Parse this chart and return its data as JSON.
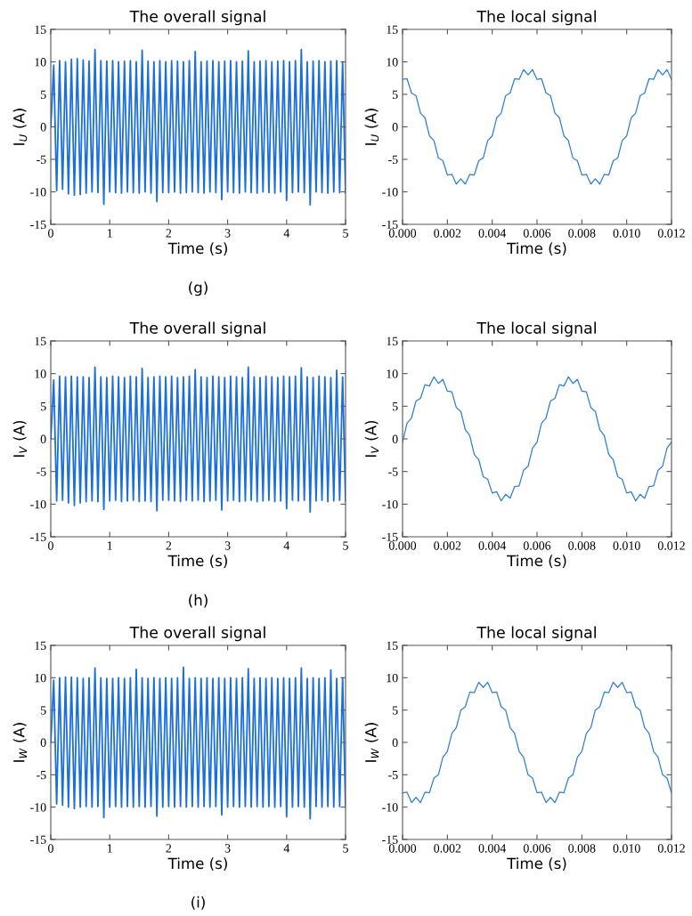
{
  "chart_data": [
    {
      "type": "line",
      "title": "The overall signal",
      "xlabel": "Time (s)",
      "ylabel": "I$_{U}$ (A)",
      "annotations": [
        "(g)"
      ],
      "x": [
        0,
        0.05,
        0.1,
        0.15,
        0.2,
        0.25,
        0.3,
        0.35,
        0.4,
        0.45,
        0.5,
        0.55,
        0.6,
        0.65,
        0.7,
        0.75,
        0.8,
        0.85,
        0.9,
        0.95,
        1,
        1.05,
        1.1,
        1.15,
        1.2,
        1.25,
        1.3,
        1.35,
        1.4,
        1.45,
        1.5,
        1.55,
        1.6,
        1.65,
        1.7,
        1.75,
        1.8,
        1.85,
        1.9,
        1.95,
        2,
        2.05,
        2.1,
        2.15,
        2.2,
        2.25,
        2.3,
        2.35,
        2.4,
        2.45,
        2.5,
        2.55,
        2.6,
        2.65,
        2.7,
        2.75,
        2.8,
        2.85,
        2.9,
        2.95,
        3,
        3.05,
        3.1,
        3.15,
        3.2,
        3.25,
        3.3,
        3.35,
        3.4,
        3.45,
        3.5,
        3.55,
        3.6,
        3.65,
        3.7,
        3.75,
        3.8,
        3.85,
        3.9,
        3.95,
        4,
        4.05,
        4.1,
        4.15,
        4.2,
        4.25,
        4.3,
        4.35,
        4.4,
        4.45,
        4.5,
        4.55,
        4.6,
        4.65,
        4.7,
        4.75,
        4.8,
        4.85,
        4.9,
        4.95,
        5
      ],
      "series": [
        {
          "color": "#1a6fdc",
          "values": [
            0,
            9.5,
            -9.8,
            10.2,
            -9.6,
            10.0,
            -10.3,
            10.4,
            -10.5,
            10.5,
            -10.4,
            10.3,
            -10.2,
            10.1,
            -10.0,
            11.9,
            -10.1,
            10.2,
            -11.9,
            10.1,
            -10.0,
            10.2,
            -10.1,
            10.0,
            -10.2,
            10.1,
            -10.0,
            10.2,
            -10.1,
            10.0,
            -10.2,
            11.8,
            -10.0,
            10.1,
            -10.2,
            10.0,
            -11.5,
            10.2,
            -10.1,
            10.0,
            -10.1,
            10.2,
            -10.0,
            10.1,
            -10.2,
            10.0,
            -10.1,
            10.2,
            -10.0,
            11.6,
            -10.1,
            10.0,
            -10.2,
            10.1,
            -10.0,
            10.2,
            -10.1,
            10.0,
            -11.2,
            10.1,
            -10.0,
            10.2,
            -10.1,
            10.0,
            -10.2,
            10.1,
            -10.0,
            11.7,
            -10.1,
            10.0,
            -10.2,
            10.1,
            -10.0,
            10.2,
            -10.1,
            10.0,
            -10.2,
            10.1,
            -10.0,
            10.2,
            -11.3,
            10.0,
            -10.1,
            10.2,
            -10.0,
            11.9,
            -10.1,
            10.0,
            -12.0,
            10.1,
            -10.0,
            10.2,
            -10.1,
            10.0,
            -10.2,
            10.1,
            -10.0,
            10.2,
            -10.1,
            10.0,
            -10.2
          ]
        }
      ],
      "xlim": [
        0,
        5
      ],
      "ylim": [
        -15,
        15
      ],
      "xticks": [
        0,
        1,
        2,
        3,
        4,
        5
      ],
      "yticks": [
        -15,
        -10,
        -5,
        0,
        5,
        10,
        15
      ]
    },
    {
      "type": "line",
      "title": "The local signal",
      "xlabel": "Time (s)",
      "ylabel": "I$_{U}$ (A)",
      "x": [
        0,
        0.0002,
        0.0004,
        0.0006,
        0.0008,
        0.001,
        0.0012,
        0.0014,
        0.0016,
        0.0018,
        0.002,
        0.0022,
        0.0024,
        0.0026,
        0.0028,
        0.003,
        0.0032,
        0.0034,
        0.0036,
        0.0038,
        0.004,
        0.0042,
        0.0044,
        0.0046,
        0.0048,
        0.005,
        0.0052,
        0.0054,
        0.0056,
        0.0058,
        0.006,
        0.0062,
        0.0064,
        0.0066,
        0.0068,
        0.007,
        0.0072,
        0.0074,
        0.0076,
        0.0078,
        0.008,
        0.0082,
        0.0084,
        0.0086,
        0.0088,
        0.009,
        0.0092,
        0.0094,
        0.0096,
        0.0098,
        0.01,
        0.0102,
        0.0104,
        0.0106,
        0.0108,
        0.011,
        0.0112,
        0.0114,
        0.0116,
        0.0118,
        0.012
      ],
      "series": [
        {
          "color": "#2f7fd0",
          "values": [
            7.3,
            7.4,
            5.2,
            4.8,
            2.1,
            1.4,
            -1.4,
            -2.1,
            -4.8,
            -5.2,
            -7.4,
            -7.3,
            -8.8,
            -8.0,
            -8.8,
            -7.3,
            -7.4,
            -5.2,
            -4.8,
            -2.1,
            -1.4,
            1.4,
            2.1,
            4.8,
            5.2,
            7.4,
            7.3,
            8.8,
            8.0,
            8.8,
            7.3,
            7.4,
            5.2,
            4.8,
            2.1,
            1.4,
            -1.4,
            -2.1,
            -4.8,
            -5.2,
            -7.4,
            -7.3,
            -8.8,
            -8.0,
            -8.8,
            -7.3,
            -7.4,
            -5.2,
            -4.8,
            -2.1,
            -1.4,
            1.4,
            2.1,
            4.8,
            5.2,
            7.4,
            7.3,
            8.8,
            8.0,
            8.8,
            7.3
          ]
        }
      ],
      "xlim": [
        0,
        0.012
      ],
      "ylim": [
        -15,
        15
      ],
      "xticks": [
        {
          "value": 0,
          "label": "0.000"
        },
        {
          "value": 0.002,
          "label": "0.002"
        },
        {
          "value": 0.004,
          "label": "0.004"
        },
        {
          "value": 0.006,
          "label": "0.006"
        },
        {
          "value": 0.008,
          "label": "0.008"
        },
        {
          "value": 0.01,
          "label": "0.010"
        },
        {
          "value": 0.012,
          "label": "0.012"
        }
      ],
      "yticks": [
        -15,
        -10,
        -5,
        0,
        5,
        10,
        15
      ]
    },
    {
      "type": "line",
      "title": "The overall signal",
      "xlabel": "Time (s)",
      "ylabel": "I$_{V}$ (A)",
      "annotations": [
        "(h)"
      ],
      "x": [
        0,
        0.05,
        0.1,
        0.15,
        0.2,
        0.25,
        0.3,
        0.35,
        0.4,
        0.45,
        0.5,
        0.55,
        0.6,
        0.65,
        0.7,
        0.75,
        0.8,
        0.85,
        0.9,
        0.95,
        1,
        1.05,
        1.1,
        1.15,
        1.2,
        1.25,
        1.3,
        1.35,
        1.4,
        1.45,
        1.5,
        1.55,
        1.6,
        1.65,
        1.7,
        1.75,
        1.8,
        1.85,
        1.9,
        1.95,
        2,
        2.05,
        2.1,
        2.15,
        2.2,
        2.25,
        2.3,
        2.35,
        2.4,
        2.45,
        2.5,
        2.55,
        2.6,
        2.65,
        2.7,
        2.75,
        2.8,
        2.85,
        2.9,
        2.95,
        3,
        3.05,
        3.1,
        3.15,
        3.2,
        3.25,
        3.3,
        3.35,
        3.4,
        3.45,
        3.5,
        3.55,
        3.6,
        3.65,
        3.7,
        3.75,
        3.8,
        3.85,
        3.9,
        3.95,
        4,
        4.05,
        4.1,
        4.15,
        4.2,
        4.25,
        4.3,
        4.35,
        4.4,
        4.45,
        4.5,
        4.55,
        4.6,
        4.65,
        4.7,
        4.75,
        4.8,
        4.85,
        4.9,
        4.95,
        5
      ],
      "series": [
        {
          "color": "#1a6fdc",
          "values": [
            0,
            9.0,
            -9.5,
            9.6,
            -9.4,
            9.5,
            -9.8,
            9.6,
            -10.2,
            9.5,
            -9.8,
            9.5,
            -9.6,
            9.4,
            -9.5,
            11.0,
            -9.6,
            9.5,
            -10.8,
            9.4,
            -9.5,
            9.6,
            -9.4,
            9.5,
            -9.6,
            9.4,
            -9.5,
            9.6,
            -9.4,
            9.5,
            -9.6,
            10.8,
            -9.5,
            9.4,
            -9.6,
            9.5,
            -11.0,
            9.6,
            -9.4,
            9.5,
            -9.4,
            9.6,
            -9.5,
            9.4,
            -9.6,
            9.5,
            -9.4,
            9.6,
            -9.5,
            10.6,
            -9.4,
            9.5,
            -9.6,
            9.4,
            -9.5,
            9.6,
            -9.4,
            9.5,
            -10.9,
            9.4,
            -9.5,
            9.6,
            -9.4,
            9.5,
            -9.6,
            9.4,
            -9.5,
            11.0,
            -9.4,
            9.5,
            -9.6,
            9.4,
            -9.5,
            9.6,
            -9.4,
            9.5,
            -9.6,
            9.4,
            -9.5,
            9.6,
            -10.7,
            9.5,
            -9.4,
            9.6,
            -9.5,
            10.9,
            -9.4,
            9.5,
            -11.2,
            9.4,
            -9.5,
            9.6,
            -9.4,
            9.5,
            -9.6,
            9.4,
            -9.5,
            10.5,
            -9.4,
            9.5,
            -9.6
          ]
        }
      ],
      "xlim": [
        0,
        5
      ],
      "ylim": [
        -15,
        15
      ],
      "xticks": [
        0,
        1,
        2,
        3,
        4,
        5
      ],
      "yticks": [
        -15,
        -10,
        -5,
        0,
        5,
        10,
        15
      ]
    },
    {
      "type": "line",
      "title": "The local signal",
      "xlabel": "Time (s)",
      "ylabel": "I$_{V}$ (A)",
      "x": [
        0,
        0.0002,
        0.0004,
        0.0006,
        0.0008,
        0.001,
        0.0012,
        0.0014,
        0.0016,
        0.0018,
        0.002,
        0.0022,
        0.0024,
        0.0026,
        0.0028,
        0.003,
        0.0032,
        0.0034,
        0.0036,
        0.0038,
        0.004,
        0.0042,
        0.0044,
        0.0046,
        0.0048,
        0.005,
        0.0052,
        0.0054,
        0.0056,
        0.0058,
        0.006,
        0.0062,
        0.0064,
        0.0066,
        0.0068,
        0.007,
        0.0072,
        0.0074,
        0.0076,
        0.0078,
        0.008,
        0.0082,
        0.0084,
        0.0086,
        0.0088,
        0.009,
        0.0092,
        0.0094,
        0.0096,
        0.0098,
        0.01,
        0.0102,
        0.0104,
        0.0106,
        0.0108,
        0.011,
        0.0112,
        0.0114,
        0.0116,
        0.0118,
        0.012
      ],
      "series": [
        {
          "color": "#2f7fd0",
          "values": [
            -0.5,
            2.4,
            3.2,
            5.8,
            6.2,
            8.3,
            8.1,
            9.5,
            8.5,
            9.1,
            7.3,
            7.2,
            4.8,
            4.2,
            1.4,
            0.5,
            -2.4,
            -3.2,
            -5.8,
            -6.2,
            -8.3,
            -8.1,
            -9.5,
            -8.5,
            -9.1,
            -7.3,
            -7.2,
            -4.8,
            -4.2,
            -1.4,
            -0.5,
            2.4,
            3.2,
            5.8,
            6.2,
            8.3,
            8.1,
            9.5,
            8.5,
            9.1,
            7.3,
            7.2,
            4.8,
            4.2,
            1.4,
            0.5,
            -2.4,
            -3.2,
            -5.8,
            -6.2,
            -8.3,
            -8.1,
            -9.5,
            -8.5,
            -9.1,
            -7.3,
            -7.2,
            -4.8,
            -4.2,
            -1.4,
            -0.5
          ]
        }
      ],
      "xlim": [
        0,
        0.012
      ],
      "ylim": [
        -15,
        15
      ],
      "xticks": [
        {
          "value": 0,
          "label": "0.000"
        },
        {
          "value": 0.002,
          "label": "0.002"
        },
        {
          "value": 0.004,
          "label": "0.004"
        },
        {
          "value": 0.006,
          "label": "0.006"
        },
        {
          "value": 0.008,
          "label": "0.008"
        },
        {
          "value": 0.01,
          "label": "0.010"
        },
        {
          "value": 0.012,
          "label": "0.012"
        }
      ],
      "yticks": [
        -15,
        -10,
        -5,
        0,
        5,
        10,
        15
      ]
    },
    {
      "type": "line",
      "title": "The overall signal",
      "xlabel": "Time (s)",
      "ylabel": "I$_{W}$ (A)",
      "annotations": [
        "(i)"
      ],
      "x": [
        0,
        0.05,
        0.1,
        0.15,
        0.2,
        0.25,
        0.3,
        0.35,
        0.4,
        0.45,
        0.5,
        0.55,
        0.6,
        0.65,
        0.7,
        0.75,
        0.8,
        0.85,
        0.9,
        0.95,
        1,
        1.05,
        1.1,
        1.15,
        1.2,
        1.25,
        1.3,
        1.35,
        1.4,
        1.45,
        1.5,
        1.55,
        1.6,
        1.65,
        1.7,
        1.75,
        1.8,
        1.85,
        1.9,
        1.95,
        2,
        2.05,
        2.1,
        2.15,
        2.2,
        2.25,
        2.3,
        2.35,
        2.4,
        2.45,
        2.5,
        2.55,
        2.6,
        2.65,
        2.7,
        2.75,
        2.8,
        2.85,
        2.9,
        2.95,
        3,
        3.05,
        3.1,
        3.15,
        3.2,
        3.25,
        3.3,
        3.35,
        3.4,
        3.45,
        3.5,
        3.55,
        3.6,
        3.65,
        3.7,
        3.75,
        3.8,
        3.85,
        3.9,
        3.95,
        4,
        4.05,
        4.1,
        4.15,
        4.2,
        4.25,
        4.3,
        4.35,
        4.4,
        4.45,
        4.5,
        4.55,
        4.6,
        4.65,
        4.7,
        4.75,
        4.8,
        4.85,
        4.9,
        4.95,
        5
      ],
      "series": [
        {
          "color": "#1a6fdc",
          "values": [
            0,
            9.6,
            -9.5,
            10.0,
            -9.7,
            10.1,
            -10.0,
            10.1,
            -10.2,
            10.0,
            -10.0,
            9.9,
            -9.9,
            10.0,
            -10.0,
            11.5,
            -9.9,
            10.0,
            -11.6,
            9.9,
            -10.0,
            9.9,
            -9.9,
            10.0,
            -10.0,
            9.9,
            -9.9,
            10.0,
            -10.0,
            11.3,
            -9.9,
            10.0,
            -10.0,
            9.9,
            -9.9,
            10.0,
            -11.4,
            9.9,
            -10.0,
            10.0,
            -9.9,
            9.9,
            -10.0,
            10.0,
            -9.9,
            11.6,
            -10.0,
            9.9,
            -9.9,
            10.0,
            -10.0,
            9.9,
            -9.9,
            10.0,
            -10.0,
            9.9,
            -9.9,
            10.0,
            -11.2,
            9.9,
            -10.0,
            10.0,
            -9.9,
            9.9,
            -10.0,
            10.0,
            -9.9,
            11.4,
            -10.0,
            9.9,
            -9.9,
            10.0,
            -10.0,
            9.9,
            -9.9,
            10.0,
            -10.0,
            9.9,
            -9.9,
            10.0,
            -11.5,
            9.9,
            -10.0,
            10.0,
            -9.9,
            11.5,
            -10.0,
            9.9,
            -11.8,
            10.0,
            -9.9,
            9.9,
            -10.0,
            10.0,
            -9.9,
            11.2,
            -10.0,
            9.9,
            -9.9,
            10.0,
            -10.0
          ]
        }
      ],
      "xlim": [
        0,
        5
      ],
      "ylim": [
        -15,
        15
      ],
      "xticks": [
        0,
        1,
        2,
        3,
        4,
        5
      ],
      "yticks": [
        -15,
        -10,
        -5,
        0,
        5,
        10,
        15
      ]
    },
    {
      "type": "line",
      "title": "The local signal",
      "xlabel": "Time (s)",
      "ylabel": "I$_{W}$ (A)",
      "x": [
        0,
        0.0002,
        0.0004,
        0.0006,
        0.0008,
        0.001,
        0.0012,
        0.0014,
        0.0016,
        0.0018,
        0.002,
        0.0022,
        0.0024,
        0.0026,
        0.0028,
        0.003,
        0.0032,
        0.0034,
        0.0036,
        0.0038,
        0.004,
        0.0042,
        0.0044,
        0.0046,
        0.0048,
        0.005,
        0.0052,
        0.0054,
        0.0056,
        0.0058,
        0.006,
        0.0062,
        0.0064,
        0.0066,
        0.0068,
        0.007,
        0.0072,
        0.0074,
        0.0076,
        0.0078,
        0.008,
        0.0082,
        0.0084,
        0.0086,
        0.0088,
        0.009,
        0.0092,
        0.0094,
        0.0096,
        0.0098,
        0.01,
        0.0102,
        0.0104,
        0.0106,
        0.0108,
        0.011,
        0.0112,
        0.0114,
        0.0116,
        0.0118,
        0.012
      ],
      "series": [
        {
          "color": "#2f7fd0",
          "values": [
            -7.8,
            -7.7,
            -9.3,
            -8.5,
            -9.3,
            -7.7,
            -7.8,
            -5.5,
            -5.0,
            -2.3,
            -1.4,
            1.4,
            2.3,
            5.0,
            5.5,
            7.8,
            7.7,
            9.3,
            8.5,
            9.3,
            7.7,
            7.8,
            5.5,
            5.0,
            2.3,
            1.4,
            -1.4,
            -2.3,
            -5.0,
            -5.5,
            -7.8,
            -7.7,
            -9.3,
            -8.5,
            -9.3,
            -7.7,
            -7.8,
            -5.5,
            -5.0,
            -2.3,
            -1.4,
            1.4,
            2.3,
            5.0,
            5.5,
            7.8,
            7.7,
            9.3,
            8.5,
            9.3,
            7.7,
            7.8,
            5.5,
            5.0,
            2.3,
            1.4,
            -1.4,
            -2.3,
            -5.0,
            -5.5,
            -7.8
          ]
        }
      ],
      "xlim": [
        0,
        0.012
      ],
      "ylim": [
        -15,
        15
      ],
      "xticks": [
        {
          "value": 0,
          "label": "0.000"
        },
        {
          "value": 0.002,
          "label": "0.002"
        },
        {
          "value": 0.004,
          "label": "0.004"
        },
        {
          "value": 0.006,
          "label": "0.006"
        },
        {
          "value": 0.008,
          "label": "0.008"
        },
        {
          "value": 0.01,
          "label": "0.010"
        },
        {
          "value": 0.012,
          "label": "0.012"
        }
      ],
      "yticks": [
        -15,
        -10,
        -5,
        0,
        5,
        10,
        15
      ]
    }
  ]
}
